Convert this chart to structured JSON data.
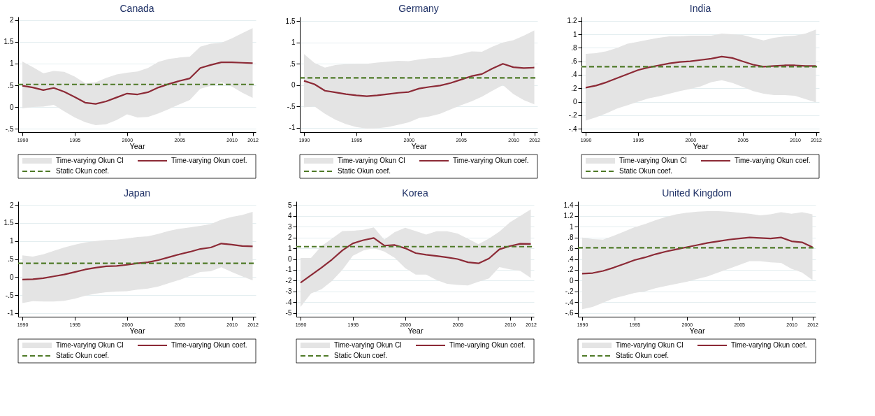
{
  "chart_data": [
    {
      "type": "line",
      "title": "Canada",
      "xlabel": "Year",
      "annotations": [
        "Time-varying Okun CI"
      ],
      "x": [
        1990,
        1991,
        1992,
        1993,
        1994,
        1995,
        1996,
        1997,
        1998,
        1999,
        2000,
        2001,
        2002,
        2003,
        2004,
        2005,
        2006,
        2007,
        2008,
        2009,
        2010,
        2011,
        2012
      ],
      "xlim": [
        1989.6,
        2012.3
      ],
      "xticks": [
        1990,
        1995,
        2000,
        2005,
        2010,
        2012
      ],
      "ylim": [
        -0.58,
        2.08
      ],
      "yticks": [
        {
          "value": -0.5,
          "label": "-.5"
        },
        0,
        {
          "value": 0.5,
          "label": ".5"
        },
        1,
        1.5,
        2
      ],
      "grid": "y",
      "legend": "bottom",
      "series": [
        {
          "name": "Time-varying Okun coef.",
          "color": "#8c2a36",
          "values": [
            0.49,
            0.45,
            0.39,
            0.44,
            0.35,
            0.23,
            0.1,
            0.07,
            0.13,
            0.22,
            0.31,
            0.29,
            0.34,
            0.45,
            0.53,
            0.6,
            0.66,
            0.9,
            0.97,
            1.03,
            1.03,
            1.02,
            1.01
          ],
          "lower": [
            -0.03,
            0,
            0.01,
            0.05,
            -0.1,
            -0.24,
            -0.35,
            -0.42,
            -0.4,
            -0.3,
            -0.17,
            -0.24,
            -0.23,
            -0.15,
            -0.05,
            0.06,
            0.16,
            0.42,
            0.49,
            0.57,
            0.47,
            0.33,
            0.21
          ],
          "upper": [
            1.05,
            0.92,
            0.78,
            0.83,
            0.81,
            0.7,
            0.55,
            0.57,
            0.67,
            0.75,
            0.79,
            0.82,
            0.9,
            1.04,
            1.11,
            1.14,
            1.16,
            1.39,
            1.46,
            1.48,
            1.58,
            1.7,
            1.82
          ]
        }
      ],
      "ref_lines": [
        {
          "axis": "y",
          "value": 0.52,
          "label": "Static Okun coef.",
          "color": "#4f7a28",
          "line_style": "dashed"
        }
      ]
    },
    {
      "type": "line",
      "title": "Germany",
      "xlabel": "Year",
      "annotations": [
        "Time-varying Okun CI"
      ],
      "x": [
        1990,
        1991,
        1992,
        1993,
        1994,
        1995,
        1996,
        1997,
        1998,
        1999,
        2000,
        2001,
        2002,
        2003,
        2004,
        2005,
        2006,
        2007,
        2008,
        2009,
        2010,
        2011,
        2012
      ],
      "xlim": [
        1989.6,
        2012.3
      ],
      "xticks": [
        1990,
        1995,
        2000,
        2005,
        2010,
        2012
      ],
      "ylim": [
        -1.1,
        1.6
      ],
      "yticks": [
        -1,
        {
          "value": -0.5,
          "label": "-.5"
        },
        0,
        {
          "value": 0.5,
          "label": ".5"
        },
        1,
        1.5
      ],
      "grid": "y",
      "legend": "bottom",
      "series": [
        {
          "name": "Time-varying Okun coef.",
          "color": "#8c2a36",
          "values": [
            0.1,
            0.02,
            -0.13,
            -0.17,
            -0.21,
            -0.24,
            -0.26,
            -0.24,
            -0.21,
            -0.18,
            -0.16,
            -0.08,
            -0.04,
            -0.01,
            0.05,
            0.13,
            0.21,
            0.26,
            0.39,
            0.5,
            0.42,
            0.4,
            0.41
          ],
          "lower": [
            -0.52,
            -0.5,
            -0.67,
            -0.81,
            -0.91,
            -0.98,
            -1.02,
            -1.01,
            -0.98,
            -0.93,
            -0.87,
            -0.77,
            -0.73,
            -0.67,
            -0.57,
            -0.47,
            -0.38,
            -0.27,
            -0.13,
            0,
            -0.21,
            -0.35,
            -0.45
          ],
          "upper": [
            0.73,
            0.52,
            0.41,
            0.47,
            0.49,
            0.5,
            0.5,
            0.53,
            0.55,
            0.57,
            0.56,
            0.6,
            0.63,
            0.64,
            0.67,
            0.73,
            0.79,
            0.78,
            0.9,
            1.0,
            1.05,
            1.16,
            1.28
          ]
        }
      ],
      "ref_lines": [
        {
          "axis": "y",
          "value": 0.17,
          "label": "Static Okun coef.",
          "color": "#4f7a28",
          "line_style": "dashed"
        }
      ]
    },
    {
      "type": "line",
      "title": "India",
      "xlabel": "Year",
      "annotations": [
        "Time-varying Okun CI"
      ],
      "x": [
        1990,
        1991,
        1992,
        1993,
        1994,
        1995,
        1996,
        1997,
        1998,
        1999,
        2000,
        2001,
        2002,
        2003,
        2004,
        2005,
        2006,
        2007,
        2008,
        2009,
        2010,
        2011,
        2012
      ],
      "xlim": [
        1989.6,
        2012.3
      ],
      "xticks": [
        1990,
        1995,
        2000,
        2005,
        2010,
        2012
      ],
      "ylim": [
        -0.45,
        1.26
      ],
      "yticks": [
        {
          "value": -0.4,
          "label": "-.4"
        },
        {
          "value": -0.2,
          "label": "-.2"
        },
        0,
        {
          "value": 0.2,
          "label": ".2"
        },
        {
          "value": 0.4,
          "label": ".4"
        },
        {
          "value": 0.6,
          "label": ".6"
        },
        {
          "value": 0.8,
          "label": ".8"
        },
        1,
        1.2
      ],
      "grid": "y",
      "legend": "bottom",
      "series": [
        {
          "name": "Time-varying Okun coef.",
          "color": "#8c2a36",
          "values": [
            0.21,
            0.24,
            0.29,
            0.35,
            0.41,
            0.47,
            0.51,
            0.54,
            0.57,
            0.59,
            0.6,
            0.62,
            0.64,
            0.67,
            0.65,
            0.6,
            0.55,
            0.52,
            0.53,
            0.54,
            0.54,
            0.53,
            0.53
          ],
          "lower": [
            -0.28,
            -0.23,
            -0.17,
            -0.1,
            -0.05,
            0,
            0.05,
            0.08,
            0.12,
            0.16,
            0.19,
            0.23,
            0.29,
            0.32,
            0.28,
            0.22,
            0.16,
            0.12,
            0.1,
            0.1,
            0.09,
            0.04,
            -0.01
          ],
          "upper": [
            0.71,
            0.72,
            0.75,
            0.8,
            0.86,
            0.89,
            0.92,
            0.95,
            0.97,
            0.97,
            0.98,
            0.98,
            0.98,
            1.01,
            1.0,
            0.99,
            0.95,
            0.91,
            0.95,
            0.97,
            0.98,
            1.01,
            1.07
          ]
        }
      ],
      "ref_lines": [
        {
          "axis": "y",
          "value": 0.52,
          "label": "Static Okun coef.",
          "color": "#4f7a28",
          "line_style": "dashed"
        }
      ]
    },
    {
      "type": "line",
      "title": "Japan",
      "xlabel": "Year",
      "annotations": [
        "Time-varying Okun CI"
      ],
      "x": [
        1990,
        1991,
        1992,
        1993,
        1994,
        1995,
        1996,
        1997,
        1998,
        1999,
        2000,
        2001,
        2002,
        2003,
        2004,
        2005,
        2006,
        2007,
        2008,
        2009,
        2010,
        2011,
        2012
      ],
      "xlim": [
        1989.6,
        2012.3
      ],
      "xticks": [
        1990,
        1995,
        2000,
        2005,
        2010,
        2012
      ],
      "ylim": [
        -1.1,
        2.1
      ],
      "yticks": [
        -1,
        {
          "value": -0.5,
          "label": "-.5"
        },
        0,
        {
          "value": 0.5,
          "label": ".5"
        },
        1,
        1.5,
        2
      ],
      "grid": "y",
      "legend": "bottom",
      "series": [
        {
          "name": "Time-varying Okun coef.",
          "color": "#8c2a36",
          "values": [
            -0.07,
            -0.06,
            -0.03,
            0.02,
            0.07,
            0.14,
            0.21,
            0.26,
            0.3,
            0.31,
            0.34,
            0.38,
            0.41,
            0.47,
            0.55,
            0.63,
            0.7,
            0.78,
            0.82,
            0.93,
            0.9,
            0.86,
            0.85
          ],
          "lower": [
            -0.72,
            -0.67,
            -0.68,
            -0.68,
            -0.66,
            -0.6,
            -0.52,
            -0.46,
            -0.42,
            -0.4,
            -0.39,
            -0.35,
            -0.32,
            -0.26,
            -0.17,
            -0.08,
            0.03,
            0.14,
            0.16,
            0.27,
            0.14,
            0.02,
            -0.09
          ],
          "upper": [
            0.6,
            0.57,
            0.63,
            0.73,
            0.82,
            0.9,
            0.96,
            1.0,
            1.03,
            1.04,
            1.07,
            1.11,
            1.13,
            1.2,
            1.28,
            1.34,
            1.38,
            1.42,
            1.47,
            1.59,
            1.67,
            1.72,
            1.81
          ]
        }
      ],
      "ref_lines": [
        {
          "axis": "y",
          "value": 0.38,
          "label": "Static Okun coef.",
          "color": "#4f7a28",
          "line_style": "dashed"
        }
      ]
    },
    {
      "type": "line",
      "title": "Korea",
      "xlabel": "Year",
      "annotations": [
        "Time-varying Okun CI"
      ],
      "x": [
        1990,
        1991,
        1992,
        1993,
        1994,
        1995,
        1996,
        1997,
        1998,
        1999,
        2000,
        2001,
        2002,
        2003,
        2004,
        2005,
        2006,
        2007,
        2008,
        2009,
        2010,
        2011,
        2012
      ],
      "xlim": [
        1989.6,
        2012.3
      ],
      "xticks": [
        1990,
        1995,
        2000,
        2005,
        2010,
        2012
      ],
      "ylim": [
        -5.35,
        5.35
      ],
      "yticks": [
        -5,
        -4,
        -3,
        -2,
        -1,
        0,
        1,
        2,
        3,
        4,
        5
      ],
      "grid": "y",
      "legend": "bottom",
      "series": [
        {
          "name": "Time-varying Okun coef.",
          "color": "#8c2a36",
          "values": [
            -2.2,
            -1.5,
            -0.8,
            -0.05,
            0.8,
            1.45,
            1.75,
            1.95,
            1.25,
            1.3,
            1.0,
            0.55,
            0.4,
            0.28,
            0.15,
            0,
            -0.3,
            -0.4,
            0.05,
            0.9,
            1.2,
            1.42,
            1.4
          ],
          "lower": [
            -4.45,
            -3.2,
            -2.8,
            -2.05,
            -1.0,
            0.3,
            0.8,
            1.0,
            0.7,
            0.12,
            -0.85,
            -1.45,
            -1.45,
            -1.95,
            -2.3,
            -2.4,
            -2.45,
            -2.1,
            -1.8,
            -0.75,
            -0.95,
            -1.1,
            -1.75
          ],
          "upper": [
            0.1,
            0.1,
            1.2,
            1.9,
            2.6,
            2.62,
            2.7,
            2.93,
            1.8,
            2.5,
            2.9,
            2.6,
            2.27,
            2.57,
            2.57,
            2.36,
            1.88,
            1.38,
            1.9,
            2.55,
            3.4,
            4.0,
            4.6
          ]
        }
      ],
      "ref_lines": [
        {
          "axis": "y",
          "value": 1.15,
          "label": "Static Okun coef.",
          "color": "#4f7a28",
          "line_style": "dashed"
        }
      ]
    },
    {
      "type": "line",
      "title": "United Kingdom",
      "xlabel": "Year",
      "annotations": [
        "Time-varying Okun CI"
      ],
      "x": [
        1990,
        1991,
        1992,
        1993,
        1994,
        1995,
        1996,
        1997,
        1998,
        1999,
        2000,
        2001,
        2002,
        2003,
        2004,
        2005,
        2006,
        2007,
        2008,
        2009,
        2010,
        2011,
        2012
      ],
      "xlim": [
        1989.6,
        2012.3
      ],
      "xticks": [
        1990,
        1995,
        2000,
        2005,
        2010,
        2012
      ],
      "ylim": [
        -0.67,
        1.47
      ],
      "yticks": [
        {
          "value": -0.6,
          "label": "-.6"
        },
        {
          "value": -0.4,
          "label": "-.4"
        },
        {
          "value": -0.2,
          "label": "-.2"
        },
        0,
        {
          "value": 0.2,
          "label": ".2"
        },
        {
          "value": 0.4,
          "label": ".4"
        },
        {
          "value": 0.6,
          "label": ".6"
        },
        {
          "value": 0.8,
          "label": ".8"
        },
        1,
        1.2,
        1.4
      ],
      "grid": "y",
      "legend": "bottom",
      "series": [
        {
          "name": "Time-varying Okun coef.",
          "color": "#8c2a36",
          "values": [
            0.13,
            0.14,
            0.18,
            0.24,
            0.31,
            0.38,
            0.43,
            0.49,
            0.54,
            0.58,
            0.62,
            0.66,
            0.7,
            0.73,
            0.76,
            0.78,
            0.8,
            0.79,
            0.78,
            0.8,
            0.73,
            0.71,
            0.62
          ],
          "lower": [
            -0.53,
            -0.49,
            -0.41,
            -0.33,
            -0.28,
            -0.23,
            -0.2,
            -0.14,
            -0.1,
            -0.06,
            -0.02,
            0.03,
            0.08,
            0.15,
            0.22,
            0.29,
            0.36,
            0.36,
            0.34,
            0.33,
            0.22,
            0.15,
            0.01
          ],
          "upper": [
            0.8,
            0.77,
            0.76,
            0.83,
            0.91,
            0.99,
            1.05,
            1.12,
            1.18,
            1.23,
            1.26,
            1.28,
            1.29,
            1.29,
            1.28,
            1.26,
            1.24,
            1.21,
            1.23,
            1.27,
            1.24,
            1.27,
            1.23
          ]
        }
      ],
      "ref_lines": [
        {
          "axis": "y",
          "value": 0.61,
          "label": "Static Okun coef.",
          "color": "#4f7a28",
          "line_style": "dashed"
        }
      ]
    }
  ]
}
